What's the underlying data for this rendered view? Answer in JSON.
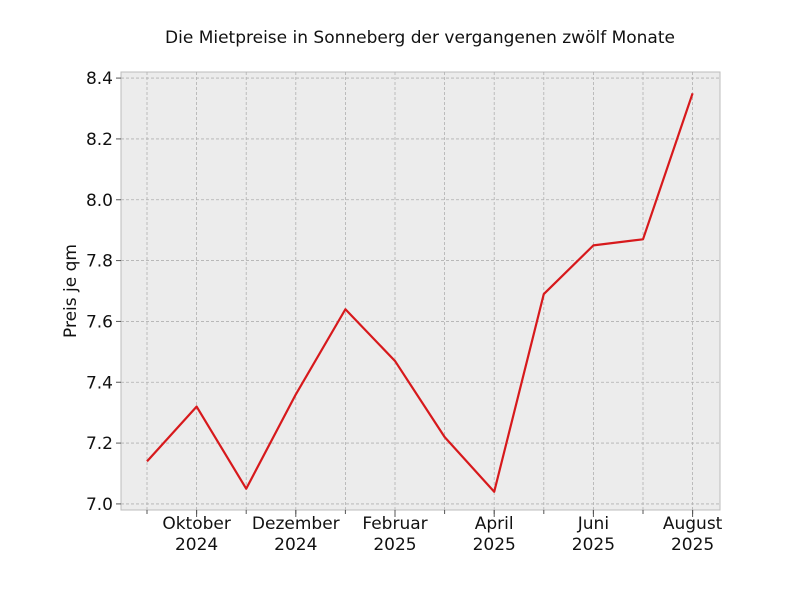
{
  "chart_data": {
    "type": "line",
    "title": "Die Mietpreise in Sonneberg der vergangenen zwölf Monate",
    "xlabel": "",
    "ylabel": "Preis je qm",
    "x": [
      "2024-09",
      "2024-10",
      "2024-11",
      "2024-12",
      "2025-01",
      "2025-02",
      "2025-03",
      "2025-04",
      "2025-05",
      "2025-06",
      "2025-07",
      "2025-08"
    ],
    "x_tick_labels": [
      {
        "x": "2024-10",
        "line1": "Oktober",
        "line2": "2024"
      },
      {
        "x": "2024-12",
        "line1": "Dezember",
        "line2": "2024"
      },
      {
        "x": "2025-02",
        "line1": "Februar",
        "line2": "2025"
      },
      {
        "x": "2025-04",
        "line1": "April",
        "line2": "2025"
      },
      {
        "x": "2025-06",
        "line1": "Juni",
        "line2": "2025"
      },
      {
        "x": "2025-08",
        "line1": "August",
        "line2": "2025"
      }
    ],
    "series": [
      {
        "values": [
          7.14,
          7.32,
          7.05,
          7.36,
          7.64,
          7.47,
          7.22,
          7.04,
          7.69,
          7.85,
          7.87,
          8.35
        ],
        "color": "#d7191c"
      }
    ],
    "ylim": [
      6.98,
      8.42
    ],
    "y_ticks": [
      "7.0",
      "7.2",
      "7.4",
      "7.6",
      "7.8",
      "8.0",
      "8.2",
      "8.4"
    ],
    "grid": true,
    "background": "#ececec"
  }
}
